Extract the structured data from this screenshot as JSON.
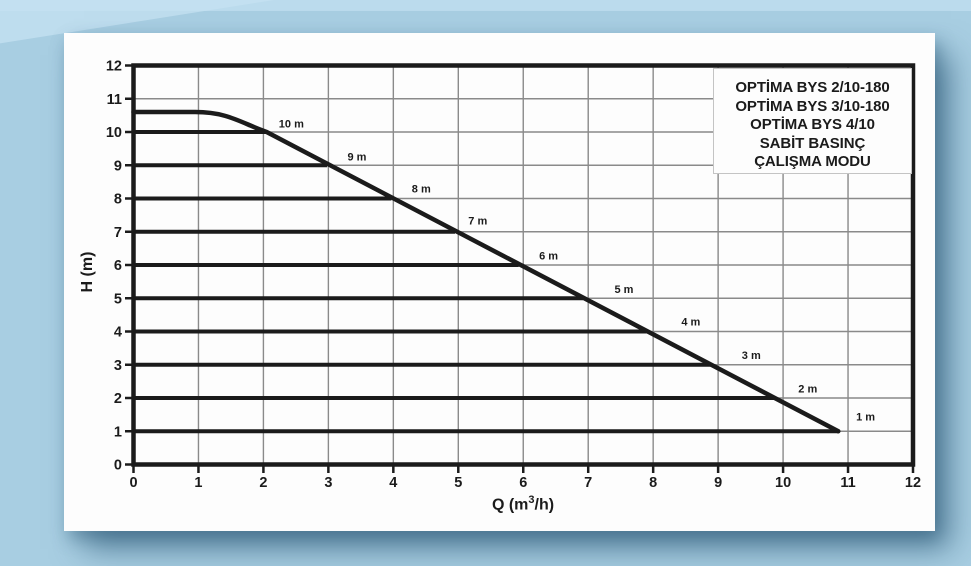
{
  "legend": {
    "lines": [
      "OPTİMA BYS 2/10-180",
      "OPTİMA BYS 3/10-180",
      "OPTİMA BYS 4/10",
      "SABİT BASINÇ",
      "ÇALIŞMA MODU"
    ]
  },
  "chart_data": {
    "type": "line",
    "title": "",
    "grid": true,
    "legend_position": "top-right",
    "x_axis": {
      "label_pre": "Q (m",
      "label_sup": "3",
      "label_post": "/h)",
      "min": 0,
      "max": 12,
      "tick_step": 1,
      "ticks": [
        0,
        1,
        2,
        3,
        4,
        5,
        6,
        7,
        8,
        9,
        10,
        11,
        12
      ]
    },
    "y_axis": {
      "label": "H (m)",
      "min": 0,
      "max": 12,
      "tick_step": 1,
      "ticks": [
        0,
        1,
        2,
        3,
        4,
        5,
        6,
        7,
        8,
        9,
        10,
        11,
        12
      ]
    },
    "max_curve": {
      "name": "maximum-head-curve",
      "points": [
        [
          0,
          10.6
        ],
        [
          0.95,
          10.6
        ],
        [
          2.05,
          10.0
        ],
        [
          10.85,
          1.0
        ]
      ]
    },
    "iso_head_lines": [
      {
        "h": 10,
        "q_end": 2.05,
        "label": "10 m",
        "label_q": 2.43,
        "label_h": 10.25
      },
      {
        "h": 9,
        "q_end": 2.98,
        "label": "9 m",
        "label_q": 3.44,
        "label_h": 9.27
      },
      {
        "h": 8,
        "q_end": 3.97,
        "label": "8 m",
        "label_q": 4.43,
        "label_h": 8.3
      },
      {
        "h": 7,
        "q_end": 4.95,
        "label": "7 m",
        "label_q": 5.3,
        "label_h": 7.34
      },
      {
        "h": 6,
        "q_end": 5.93,
        "label": "6 m",
        "label_q": 6.39,
        "label_h": 6.28
      },
      {
        "h": 5,
        "q_end": 6.92,
        "label": "5 m",
        "label_q": 7.55,
        "label_h": 5.28
      },
      {
        "h": 4,
        "q_end": 7.9,
        "label": "4 m",
        "label_q": 8.58,
        "label_h": 4.3
      },
      {
        "h": 3,
        "q_end": 8.88,
        "label": "3 m",
        "label_q": 9.51,
        "label_h": 3.29
      },
      {
        "h": 2,
        "q_end": 9.87,
        "label": "2 m",
        "label_q": 10.38,
        "label_h": 2.28
      },
      {
        "h": 1,
        "q_end": 10.85,
        "label": "1 m",
        "label_q": 11.27,
        "label_h": 1.44
      }
    ],
    "colors": {
      "curve": "#1b1b1b",
      "frame": "#1b1b1b",
      "grid": "#8a8a8a",
      "tick_text": "#1b1b1b",
      "paper": "#fdfdfd",
      "background": "#a8cee2",
      "background_light": "#c6e2f2"
    }
  }
}
